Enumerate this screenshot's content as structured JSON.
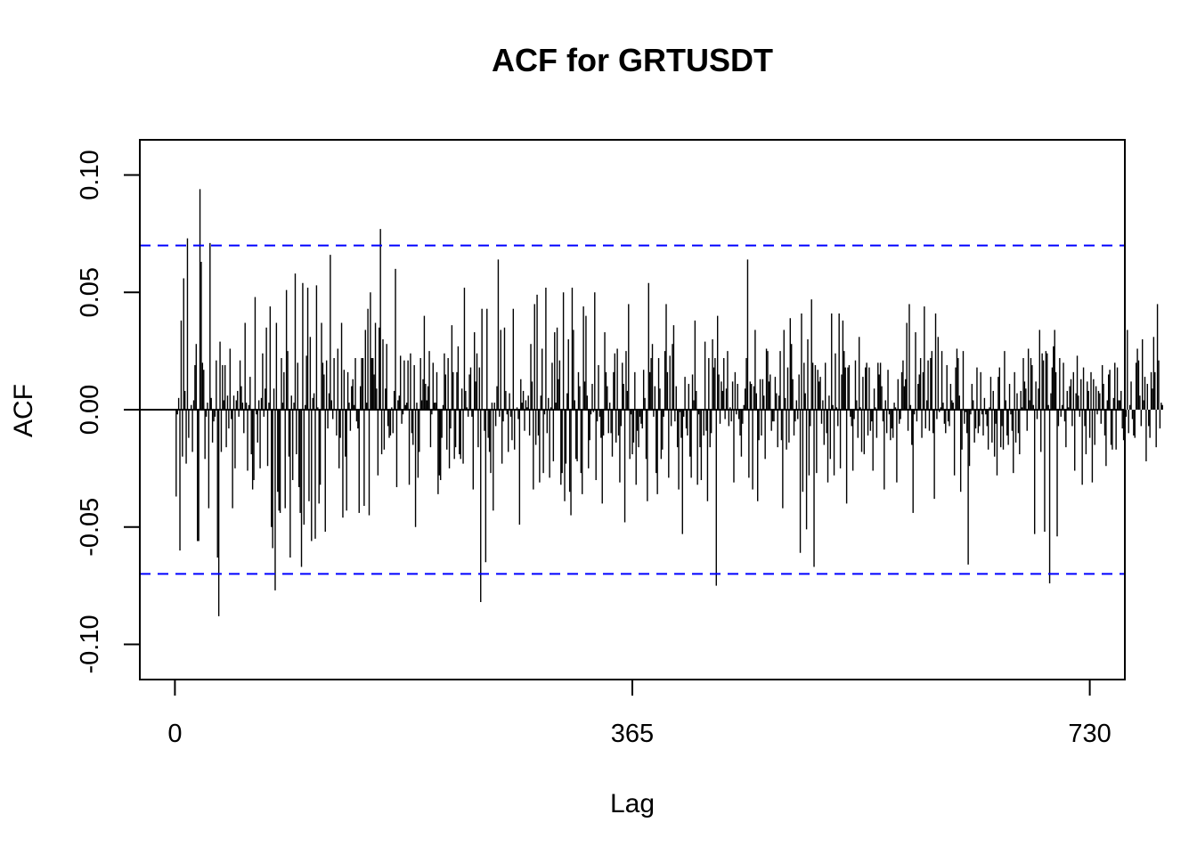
{
  "chart_data": {
    "type": "bar",
    "title": "ACF for GRTUSDT",
    "xlabel": "Lag",
    "ylabel": "ACF",
    "xlim": [
      -28,
      758
    ],
    "ylim": [
      -0.115,
      0.115
    ],
    "x_ticks": [
      0,
      365,
      730
    ],
    "x_tick_labels": [
      "0",
      "365",
      "730"
    ],
    "y_ticks": [
      -0.1,
      -0.05,
      0.0,
      0.05,
      0.1
    ],
    "y_tick_labels": [
      "-0.10",
      "-0.05",
      "0.00",
      "0.05",
      "0.10"
    ],
    "confidence_bounds": [
      0.07,
      -0.07
    ],
    "zero_line": 0,
    "grid": false,
    "colors": {
      "bars": "#000000",
      "bounds": "#0000ff",
      "zero_line": "#000000"
    },
    "lag_start": 1,
    "lag_step": 1,
    "values": [
      -0.037,
      -0.002,
      0.005,
      -0.06,
      0.038,
      -0.02,
      0.056,
      0.008,
      -0.023,
      0.073,
      -0.012,
      0.0,
      0.002,
      -0.018,
      0.004,
      0.019,
      0.028,
      -0.056,
      -0.056,
      0.094,
      0.063,
      0.02,
      0.017,
      -0.021,
      -0.003,
      0.003,
      -0.042,
      0.071,
      0.005,
      -0.014,
      -0.005,
      -0.003,
      0.021,
      -0.063,
      -0.088,
      0.029,
      -0.018,
      0.019,
      0.004,
      0.019,
      -0.016,
      0.006,
      -0.008,
      0.026,
      -0.004,
      -0.042,
      0.006,
      -0.025,
      0.004,
      0.008,
      -0.003,
      0.021,
      0.01,
      0.003,
      -0.01,
      0.037,
      0.003,
      -0.026,
      0.002,
      0.014,
      -0.019,
      -0.034,
      -0.03,
      0.048,
      -0.002,
      -0.014,
      0.004,
      -0.025,
      0.005,
      0.024,
      -0.003,
      0.009,
      0.035,
      -0.024,
      0.003,
      0.044,
      -0.05,
      -0.059,
      0.009,
      -0.077,
      0.037,
      -0.035,
      -0.043,
      -0.044,
      0.022,
      0.003,
      0.016,
      -0.042,
      0.051,
      0.025,
      -0.02,
      -0.063,
      0.006,
      -0.03,
      0.003,
      0.058,
      -0.019,
      0.02,
      -0.033,
      -0.044,
      -0.067,
      0.054,
      -0.049,
      0.002,
      0.023,
      0.052,
      -0.039,
      0.031,
      -0.056,
      0.005,
      0.007,
      -0.055,
      0.053,
      0.001,
      -0.04,
      -0.032,
      0.037,
      0.02,
      0.015,
      -0.052,
      0.021,
      -0.008,
      0.007,
      0.066,
      0.004,
      -0.004,
      0.022,
      0.0,
      -0.011,
      0.026,
      -0.025,
      -0.012,
      0.037,
      -0.046,
      0.017,
      -0.02,
      -0.043,
      0.016,
      0.003,
      -0.009,
      0.01,
      0.013,
      0.002,
      0.022,
      -0.005,
      -0.008,
      -0.044,
      0.01,
      0.022,
      0.022,
      -0.041,
      0.034,
      0.003,
      0.043,
      -0.045,
      0.05,
      0.022,
      0.022,
      0.015,
      0.037,
      0.009,
      -0.028,
      0.035,
      0.077,
      -0.019,
      0.03,
      -0.017,
      0.009,
      0.028,
      -0.007,
      -0.012,
      -0.011,
      0.001,
      -0.01,
      0.008,
      0.06,
      -0.033,
      0.004,
      0.006,
      0.023,
      -0.006,
      -0.002,
      0.021,
      0.002,
      0.003,
      0.021,
      -0.032,
      0.024,
      -0.01,
      -0.015,
      0.019,
      -0.05,
      0.003,
      -0.029,
      -0.018,
      0.022,
      0.004,
      0.013,
      0.04,
      0.011,
      0.004,
      0.01,
      0.025,
      -0.016,
      -0.002,
      0.02,
      0.003,
      0.003,
      0.016,
      -0.036,
      -0.028,
      -0.03,
      -0.012,
      0.002,
      0.024,
      0.015,
      -0.017,
      0.022,
      -0.025,
      -0.008,
      0.036,
      0.016,
      -0.021,
      -0.016,
      0.016,
      0.027,
      -0.019,
      -0.021,
      0.009,
      -0.023,
      0.052,
      0.008,
      0.001,
      -0.003,
      0.015,
      0.018,
      -0.003,
      -0.034,
      0.033,
      0.012,
      0.024,
      -0.016,
      0.018,
      -0.082,
      0.043,
      0.0,
      -0.009,
      -0.065,
      0.043,
      -0.012,
      -0.018,
      -0.027,
      0.003,
      -0.043,
      0.003,
      -0.007,
      0.01,
      0.064,
      -0.003,
      0.034,
      -0.023,
      -0.005,
      0.035,
      0.008,
      -0.002,
      -0.018,
      0.007,
      -0.003,
      -0.013,
      0.043,
      -0.017,
      0.0,
      0.001,
      -0.004,
      -0.049,
      0.013,
      0.003,
      0.008,
      -0.009,
      0.004,
      0.001,
      0.006,
      -0.011,
      0.028,
      0.012,
      -0.034,
      0.045,
      -0.015,
      0.049,
      -0.011,
      -0.031,
      0.006,
      0.026,
      -0.027,
      -0.002,
      0.052,
      -0.01,
      0.005,
      -0.029,
      0.001,
      0.02,
      -0.022,
      0.033,
      0.003,
      0.035,
      0.013,
      0.021,
      -0.032,
      -0.027,
      0.05,
      -0.039,
      -0.023,
      0.007,
      0.03,
      -0.035,
      -0.045,
      0.052,
      0.034,
      0.004,
      -0.021,
      -0.022,
      0.016,
      0.01,
      -0.027,
      -0.036,
      0.044,
      0.012,
      0.04,
      0.006,
      -0.025,
      -0.013,
      -0.002,
      0.011,
      -0.001,
      0.05,
      -0.03,
      -0.005,
      0.019,
      -0.003,
      -0.012,
      -0.04,
      -0.011,
      0.033,
      0.016,
      0.01,
      -0.01,
      0.003,
      -0.01,
      -0.02,
      0.016,
      0.024,
      -0.014,
      0.026,
      -0.011,
      -0.031,
      -0.007,
      0.02,
      0.011,
      -0.048,
      0.025,
      0.008,
      0.045,
      -0.021,
      -0.002,
      -0.019,
      -0.014,
      0.016,
      -0.032,
      -0.009,
      -0.016,
      -0.003,
      -0.006,
      -0.008,
      0.017,
      0.005,
      -0.021,
      -0.039,
      0.054,
      0.016,
      0.022,
      0.028,
      -0.003,
      0.01,
      -0.027,
      -0.036,
      0.022,
      0.009,
      -0.021,
      -0.017,
      -0.003,
      0.025,
      0.045,
      0.016,
      -0.029,
      0.023,
      -0.007,
      0.028,
      0.036,
      -0.005,
      0.01,
      -0.016,
      -0.034,
      -0.001,
      -0.012,
      -0.053,
      -0.003,
      0.014,
      -0.008,
      -0.011,
      0.011,
      -0.02,
      -0.029,
      0.015,
      0.004,
      0.038,
      0.008,
      -0.032,
      -0.002,
      -0.016,
      -0.03,
      0.0,
      -0.011,
      0.029,
      -0.009,
      -0.039,
      0.022,
      -0.016,
      -0.01,
      0.03,
      0.018,
      0.022,
      -0.075,
      0.04,
      0.015,
      -0.006,
      0.012,
      0.008,
      0.022,
      -0.004,
      0.009,
      0.025,
      -0.007,
      0.001,
      -0.005,
      0.012,
      -0.031,
      0.016,
      -0.002,
      0.011,
      -0.004,
      -0.011,
      -0.02,
      -0.006,
      0.002,
      0.009,
      0.022,
      0.064,
      -0.029,
      0.012,
      0.011,
      -0.034,
      0.01,
      0.034,
      0.007,
      -0.039,
      -0.013,
      0.013,
      -0.011,
      0.013,
      0.006,
      -0.021,
      0.026,
      0.025,
      0.012,
      0.015,
      -0.009,
      -0.005,
      -0.005,
      0.014,
      0.007,
      -0.016,
      0.006,
      0.025,
      -0.013,
      -0.042,
      0.034,
      0.005,
      -0.017,
      0.018,
      -0.014,
      0.039,
      0.028,
      0.013,
      -0.011,
      -0.005,
      0.004,
      -0.004,
      0.015,
      -0.061,
      0.041,
      -0.035,
      0.02,
      0.007,
      -0.051,
      0.03,
      -0.028,
      -0.007,
      0.047,
      0.02,
      -0.067,
      0.019,
      -0.027,
      0.017,
      0.012,
      0.014,
      -0.006,
      0.004,
      -0.015,
      0.02,
      -0.01,
      -0.031,
      0.006,
      -0.021,
      0.041,
      0.002,
      -0.028,
      0.024,
      0.001,
      -0.007,
      0.041,
      -0.025,
      0.015,
      0.038,
      0.025,
      0.018,
      -0.04,
      0.018,
      0.019,
      -0.003,
      -0.007,
      -0.026,
      -0.004,
      0.021,
      0.004,
      -0.012,
      0.031,
      0.001,
      -0.018,
      0.014,
      -0.019,
      0.018,
      0.02,
      -0.011,
      0.018,
      -0.009,
      -0.005,
      -0.026,
      0.009,
      0.001,
      -0.012,
      0.02,
      0.015,
      0.02,
      0.01,
      -0.005,
      -0.034,
      0.004,
      -0.01,
      0.017,
      -0.002,
      -0.013,
      -0.008,
      -0.012,
      0.003,
      0.001,
      -0.031,
      0.013,
      -0.006,
      -0.004,
      0.016,
      0.021,
      0.01,
      0.013,
      0.037,
      -0.009,
      0.045,
      0.002,
      -0.015,
      -0.044,
      -0.002,
      0.033,
      -0.005,
      0.011,
      0.015,
      0.022,
      -0.012,
      0.016,
      0.044,
      -0.008,
      0.004,
      0.021,
      -0.009,
      0.022,
      0.025,
      -0.01,
      -0.038,
      0.041,
      -0.004,
      0.031,
      -0.001,
      0.001,
      0.025,
      0.003,
      -0.006,
      -0.01,
      0.019,
      -0.005,
      -0.007,
      0.011,
      0.004,
      0.003,
      -0.028,
      0.018,
      0.026,
      0.022,
      0.006,
      -0.035,
      -0.017,
      0.025,
      -0.006,
      -0.001,
      -0.01,
      -0.066,
      -0.024,
      -0.002,
      0.011,
      0.004,
      -0.014,
      -0.008,
      0.018,
      -0.01,
      -0.007,
      0.016,
      -0.002,
      -0.011,
      0.005,
      -0.002,
      -0.007,
      -0.017,
      0.001,
      0.014,
      -0.014,
      0.008,
      -0.02,
      -0.006,
      -0.028,
      0.014,
      0.018,
      -0.016,
      -0.007,
      -0.017,
      0.025,
      0.004,
      -0.011,
      -0.015,
      0.011,
      -0.002,
      -0.009,
      -0.027,
      0.016,
      -0.014,
      0.007,
      -0.01,
      -0.019,
      0.008,
      0.001,
      0.022,
      0.012,
      0.009,
      -0.009,
      0.026,
      0.004,
      0.022,
      0.019,
      0.002,
      -0.053,
      0.012,
      -0.004,
      0.009,
      0.034,
      -0.018,
      0.024,
      0.021,
      -0.052,
      0.025,
      0.024,
      0.002,
      -0.074,
      0.007,
      0.018,
      0.027,
      0.034,
      0.016,
      -0.054,
      -0.007,
      0.022,
      -0.003,
      0.002,
      0.02,
      -0.005,
      -0.016,
      0.008,
      0.001,
      0.01,
      0.013,
      -0.007,
      0.016,
      -0.026,
      0.007,
      0.023,
      0.006,
      -0.003,
      0.013,
      -0.032,
      0.018,
      -0.007,
      -0.019,
      0.012,
      0.008,
      -0.012,
      0.016,
      -0.031,
      0.013,
      -0.015,
      0.01,
      -0.002,
      0.008,
      0.007,
      -0.006,
      0.019,
      0.011,
      -0.011,
      -0.024,
      0.004,
      0.015,
      0.017,
      -0.015,
      -0.017,
      0.005,
      0.02,
      -0.017,
      0.018,
      0.004,
      0.004,
      0.008,
      -0.008,
      -0.013,
      0.012,
      -0.003,
      0.034,
      -0.01,
      0.002,
      0.012,
      -0.004,
      -0.011,
      -0.012,
      0.02,
      0.026,
      0.021,
      0.006,
      -0.007,
      0.03,
      0.004,
      0.014,
      -0.022,
      0.011,
      -0.007,
      -0.012,
      0.016,
      0.009,
      0.031,
      0.016,
      -0.016,
      0.045,
      0.021,
      -0.008,
      0.003,
      0.002
    ]
  }
}
